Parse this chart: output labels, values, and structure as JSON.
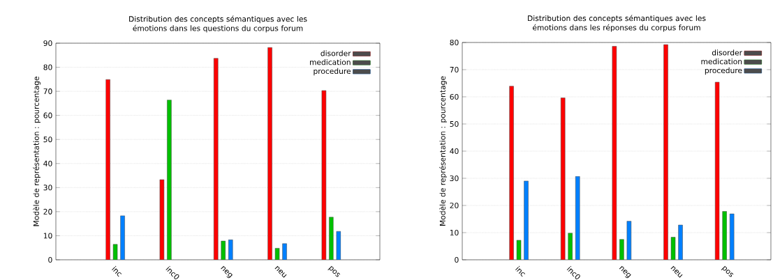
{
  "chart_data": [
    {
      "type": "bar",
      "title": "Distribution des concepts sémantiques avec les émotions dans les questions du corpus forum",
      "ylabel": "Modèle de représentation : pourcentage",
      "categories": [
        "inc",
        "inc0",
        "neg",
        "neu",
        "pos"
      ],
      "series": [
        {
          "name": "disorder",
          "color": "#ff0000",
          "values": [
            74.9,
            33.3,
            83.7,
            88.2,
            70.3
          ]
        },
        {
          "name": "medication",
          "color": "#00c000",
          "values": [
            6.4,
            66.4,
            7.8,
            4.8,
            17.7
          ]
        },
        {
          "name": "procedure",
          "color": "#0080ff",
          "values": [
            18.3,
            null,
            8.3,
            6.7,
            11.8
          ]
        }
      ],
      "ylim": [
        0,
        90
      ],
      "yticks": [
        0,
        10,
        20,
        30,
        40,
        50,
        60,
        70,
        80,
        90
      ],
      "grid": "y",
      "legend": "top right"
    },
    {
      "type": "bar",
      "title": "Distribution des concepts sémantiques avec les émotions dans les réponses du corpus forum",
      "ylabel": "Modèle de représentation : pourcentage",
      "categories": [
        "inc",
        "inc0",
        "neg",
        "neu",
        "pos"
      ],
      "series": [
        {
          "name": "disorder",
          "color": "#ff0000",
          "values": [
            63.9,
            59.6,
            78.6,
            79.2,
            65.4
          ]
        },
        {
          "name": "medication",
          "color": "#00c000",
          "values": [
            7.2,
            9.8,
            7.5,
            8.3,
            17.8
          ]
        },
        {
          "name": "procedure",
          "color": "#0080ff",
          "values": [
            29.0,
            30.7,
            14.2,
            12.8,
            16.9
          ]
        }
      ],
      "ylim": [
        0,
        80
      ],
      "yticks": [
        0,
        10,
        20,
        30,
        40,
        50,
        60,
        70,
        80
      ],
      "grid": "y",
      "legend": "top right"
    }
  ]
}
